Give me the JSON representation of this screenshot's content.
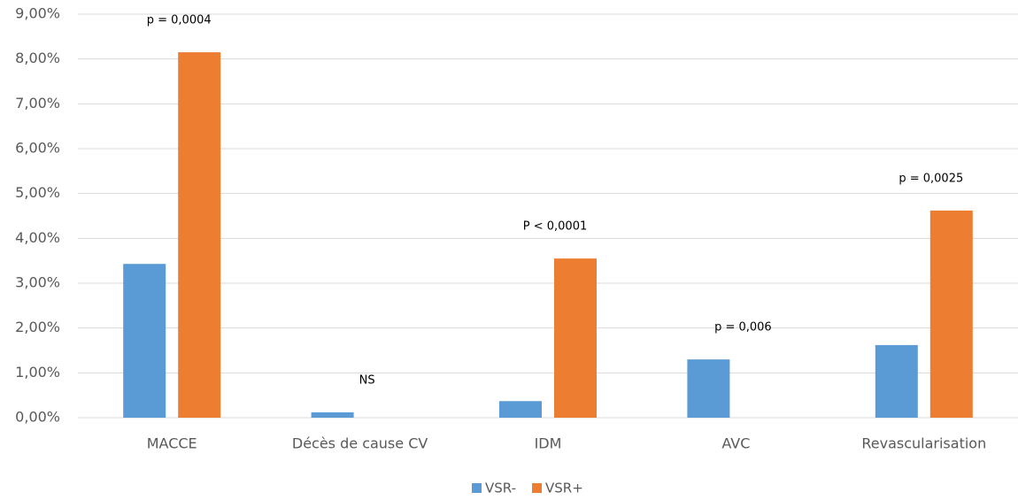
{
  "chart_data": {
    "type": "bar",
    "categories": [
      "MACCE",
      "Décès de cause CV",
      "IDM",
      "AVC",
      "Revascularisation"
    ],
    "series": [
      {
        "name": "VSR-",
        "color": "#5b9bd5",
        "values": [
          3.43,
          0.12,
          0.37,
          1.3,
          1.62
        ]
      },
      {
        "name": "VSR+",
        "color": "#ed7d31",
        "values": [
          8.15,
          0,
          3.55,
          0,
          4.62
        ]
      }
    ],
    "annotations": [
      "p = 0,0004",
      "NS",
      "P < 0,0001",
      "p = 0,006",
      "p = 0,0025"
    ],
    "ylim": [
      0,
      9
    ],
    "yticks": [
      {
        "value": 0,
        "label": "0,00%"
      },
      {
        "value": 1,
        "label": "1,00%"
      },
      {
        "value": 2,
        "label": "2,00%"
      },
      {
        "value": 3,
        "label": "3,00%"
      },
      {
        "value": 4,
        "label": "4,00%"
      },
      {
        "value": 5,
        "label": "5,00%"
      },
      {
        "value": 6,
        "label": "6,00%"
      },
      {
        "value": 7,
        "label": "7,00%"
      },
      {
        "value": 8,
        "label": "8,00%"
      },
      {
        "value": 9,
        "label": "9,00%"
      }
    ],
    "grid": true,
    "legend": "bottom"
  }
}
